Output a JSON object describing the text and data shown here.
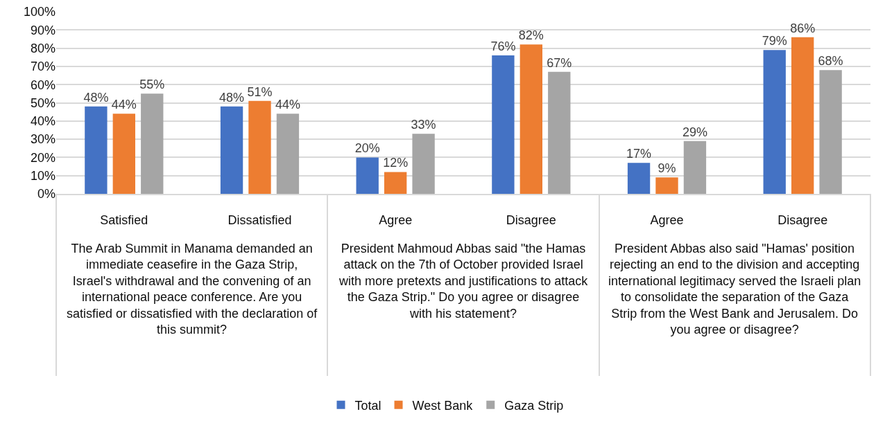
{
  "chart_data": {
    "type": "bar",
    "categories": [
      "Satisfied",
      "Dissatisfied",
      "Agree",
      "Disagree",
      "Agree",
      "Disagree"
    ],
    "series": [
      {
        "name": "Total",
        "color": "#4472c4",
        "values": [
          48,
          48,
          20,
          76,
          17,
          79
        ],
        "value_labels": [
          "48%",
          "48%",
          "20%",
          "76%",
          "17%",
          "79%"
        ]
      },
      {
        "name": "West Bank",
        "color": "#ed7d31",
        "values": [
          44,
          51,
          12,
          82,
          9,
          86
        ],
        "value_labels": [
          "44%",
          "51%",
          "12%",
          "82%",
          "9%",
          "86%"
        ]
      },
      {
        "name": "Gaza Strip",
        "color": "#a5a5a5",
        "values": [
          55,
          44,
          33,
          67,
          29,
          68
        ],
        "value_labels": [
          "55%",
          "44%",
          "33%",
          "67%",
          "29%",
          "68%"
        ]
      }
    ],
    "ylim": [
      0,
      100
    ],
    "yticks": [
      {
        "value": 0,
        "label": "0%"
      },
      {
        "value": 10,
        "label": "10%"
      },
      {
        "value": 20,
        "label": "20%"
      },
      {
        "value": 30,
        "label": "30%"
      },
      {
        "value": 40,
        "label": "40%"
      },
      {
        "value": 50,
        "label": "50%"
      },
      {
        "value": 60,
        "label": "60%"
      },
      {
        "value": 70,
        "label": "70%"
      },
      {
        "value": 80,
        "label": "80%"
      },
      {
        "value": 90,
        "label": "90%"
      },
      {
        "value": 100,
        "label": "100%"
      }
    ],
    "grid": "y",
    "legend": "bottom",
    "annotations": [
      "The Arab Summit in Manama demanded an immediate ceasefire in the Gaza Strip, Israel's withdrawal and the convening of an international peace conference. Are you satisfied or dissatisfied with the declaration of this summit?",
      "President Mahmoud Abbas said \"the Hamas attack on the 7th of October provided Israel with more pretexts and justifications to attack the Gaza Strip.\" Do you agree or disagree with his statement?",
      "President Abbas also said \"Hamas' position rejecting an end to the division and accepting international legitimacy served the Israeli plan to consolidate the separation of the Gaza Strip from the West Bank and Jerusalem. Do you agree or disagree?"
    ]
  }
}
